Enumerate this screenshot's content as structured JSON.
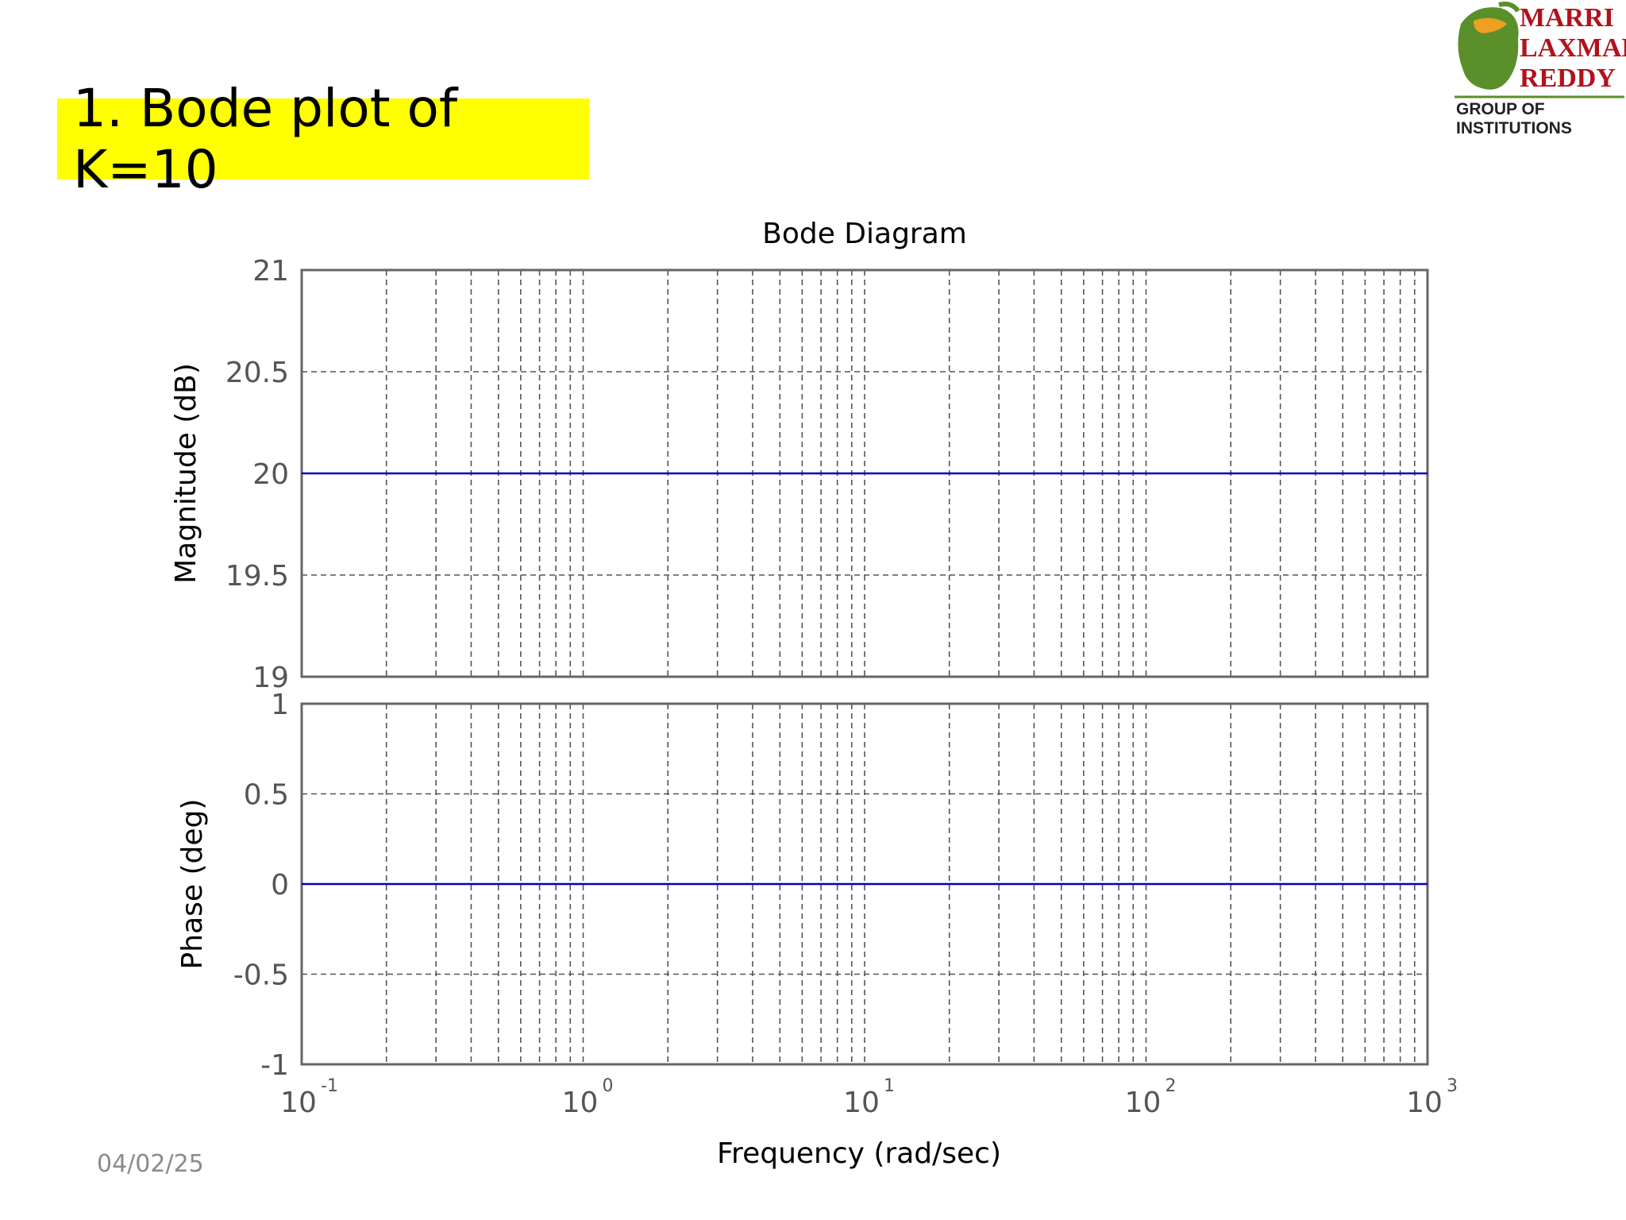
{
  "slide": {
    "title": "1. Bode plot of K=10",
    "date": "04/02/25",
    "title_bg_color": "#ffff00"
  },
  "logo": {
    "line1": "MARRI",
    "line2": "LAXMAN",
    "line3": "REDDY",
    "subtitle": "GROUP OF INSTITUTIONS",
    "text_color": "#b1121c",
    "emblem_color": "#5a8f2a"
  },
  "chart_data": {
    "type": "line",
    "title": "Bode Diagram",
    "xlabel": "Frequency  (rad/sec)",
    "x_scale": "log",
    "xlim": [
      0.1,
      1000
    ],
    "x_ticks": [
      {
        "base": "10",
        "exp": "-1"
      },
      {
        "base": "10",
        "exp": "0"
      },
      {
        "base": "10",
        "exp": "1"
      },
      {
        "base": "10",
        "exp": "2"
      },
      {
        "base": "10",
        "exp": "3"
      }
    ],
    "grid": true,
    "line_color": "#0000c0",
    "subplots": [
      {
        "name": "magnitude",
        "ylabel": "Magnitude (dB)",
        "ylim": [
          19,
          21
        ],
        "y_ticks": [
          "21",
          "20.5",
          "20",
          "19.5",
          "19"
        ],
        "series": [
          {
            "x": [
              0.1,
              1000
            ],
            "y": [
              20,
              20
            ]
          }
        ]
      },
      {
        "name": "phase",
        "ylabel": "Phase (deg)",
        "ylim": [
          -1,
          1
        ],
        "y_ticks": [
          "1",
          "0.5",
          "0",
          "-0.5",
          "-1"
        ],
        "series": [
          {
            "x": [
              0.1,
              1000
            ],
            "y": [
              0,
              0
            ]
          }
        ]
      }
    ]
  }
}
